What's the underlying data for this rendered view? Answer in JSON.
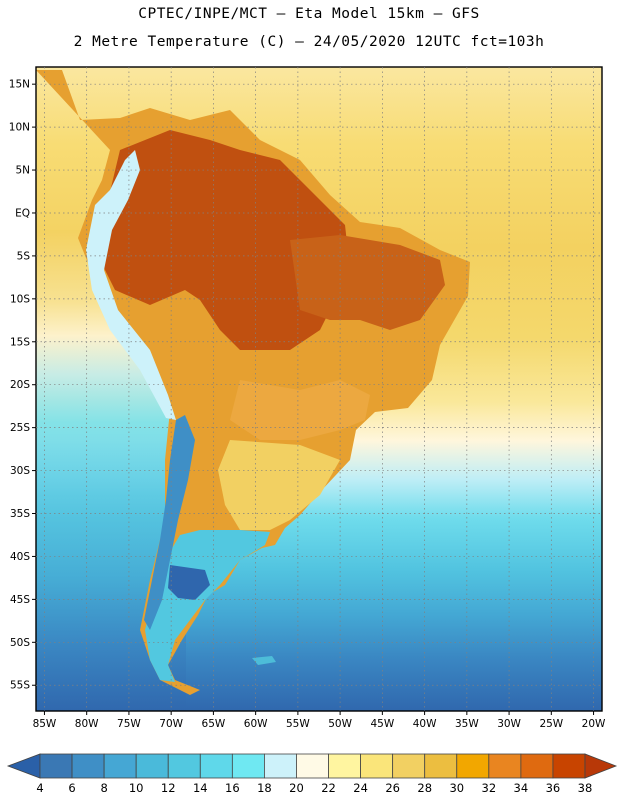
{
  "header": {
    "line1": "CPTEC/INPE/MCT –  Eta Model 15km – GFS",
    "line2": "2 Metre Temperature (C) – 24/05/2020 12UTC fct=103h"
  },
  "map": {
    "lon_range": [
      -86,
      -19
    ],
    "lat_range": [
      -58,
      17
    ],
    "x_ticks": [
      {
        "value": -85,
        "label": "85W"
      },
      {
        "value": -80,
        "label": "80W"
      },
      {
        "value": -75,
        "label": "75W"
      },
      {
        "value": -70,
        "label": "70W"
      },
      {
        "value": -65,
        "label": "65W"
      },
      {
        "value": -60,
        "label": "60W"
      },
      {
        "value": -55,
        "label": "55W"
      },
      {
        "value": -50,
        "label": "50W"
      },
      {
        "value": -45,
        "label": "45W"
      },
      {
        "value": -40,
        "label": "40W"
      },
      {
        "value": -35,
        "label": "35W"
      },
      {
        "value": -30,
        "label": "30W"
      },
      {
        "value": -25,
        "label": "25W"
      },
      {
        "value": -20,
        "label": "20W"
      }
    ],
    "y_ticks": [
      {
        "value": 15,
        "label": "15N"
      },
      {
        "value": 10,
        "label": "10N"
      },
      {
        "value": 5,
        "label": "5N"
      },
      {
        "value": 0,
        "label": "EQ"
      },
      {
        "value": -5,
        "label": "5S"
      },
      {
        "value": -10,
        "label": "10S"
      },
      {
        "value": -15,
        "label": "15S"
      },
      {
        "value": -20,
        "label": "20S"
      },
      {
        "value": -25,
        "label": "25S"
      },
      {
        "value": -30,
        "label": "30S"
      },
      {
        "value": -35,
        "label": "35S"
      },
      {
        "value": -40,
        "label": "40S"
      },
      {
        "value": -45,
        "label": "45S"
      },
      {
        "value": -50,
        "label": "50S"
      },
      {
        "value": -55,
        "label": "55S"
      }
    ],
    "grid": "dotted"
  },
  "colorbar": {
    "labels": [
      "4",
      "6",
      "8",
      "10",
      "12",
      "14",
      "16",
      "18",
      "20",
      "22",
      "24",
      "26",
      "28",
      "30",
      "32",
      "34",
      "36",
      "38"
    ],
    "colors": [
      "#3a78b4",
      "#3f8fc6",
      "#45a7d4",
      "#4abada",
      "#52c8e0",
      "#5fd8ea",
      "#6fe8f2",
      "#cdf2fa",
      "#fffae6",
      "#fff5a0",
      "#fae57a",
      "#f2d062",
      "#ecbe40",
      "#f2a700",
      "#e98520",
      "#df6a10",
      "#c84400"
    ],
    "low_color": "#2a60a8",
    "high_color": "#b83808"
  }
}
